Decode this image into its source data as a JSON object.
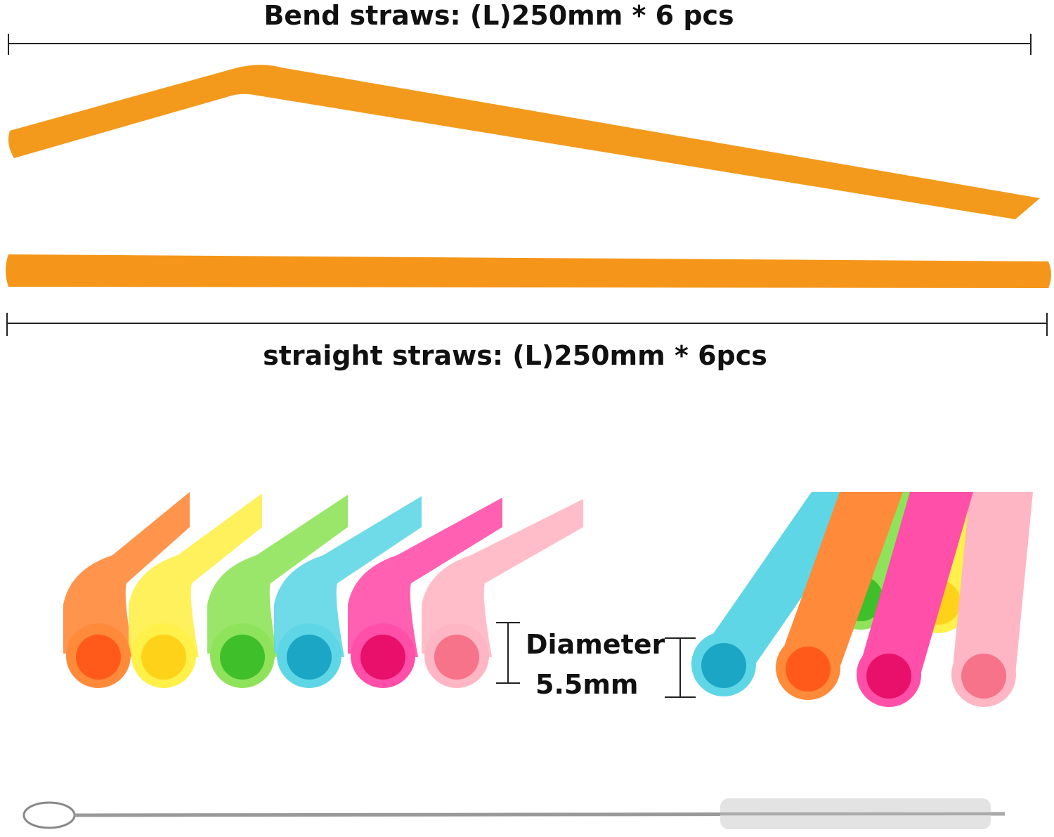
{
  "labels": {
    "bend": "Bend straws: (L)250mm * 6 pcs",
    "straight": "straight straws: (L)250mm * 6pcs",
    "diameter": "Diameter",
    "diameter_value": "5.5mm"
  },
  "colors": {
    "orange": "#f39a1c",
    "straw_palette": [
      "#ff8a3a",
      "#fff04a",
      "#8fe35a",
      "#5fd6e6",
      "#ff4fa8",
      "#ffb6c4"
    ],
    "straw_inner": [
      "#ff5a1a",
      "#ffd21a",
      "#3fbf2a",
      "#1aa6c4",
      "#e8106a",
      "#f7738a"
    ],
    "line": "#222222",
    "brush": "#cfcfcf"
  }
}
